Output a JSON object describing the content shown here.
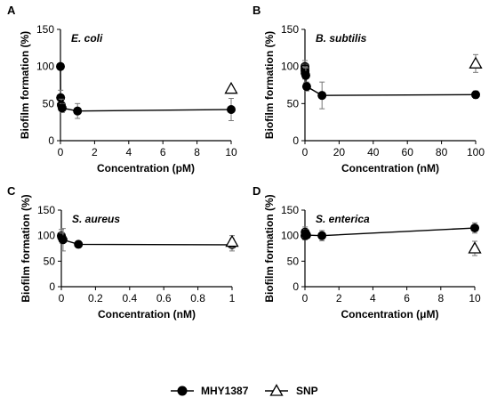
{
  "chart_data": [
    {
      "panel": "A",
      "type": "scatter",
      "title": "E. coli",
      "xlabel": "Concentration (pM)",
      "ylabel": "Biofilm formation (%)",
      "xlim": [
        0,
        10
      ],
      "ylim": [
        0,
        150
      ],
      "xticks": [
        "0",
        "2",
        "4",
        "6",
        "8",
        "10"
      ],
      "yticks": [
        "0",
        "50",
        "100",
        "150"
      ],
      "series": [
        {
          "name": "MHY1387",
          "marker": "circle",
          "connected": true,
          "x": [
            0,
            0.01,
            0.05,
            0.1,
            1,
            10
          ],
          "y": [
            100,
            58,
            48,
            44,
            40,
            42
          ],
          "err": [
            0,
            10,
            8,
            6,
            10,
            15
          ]
        },
        {
          "name": "SNP",
          "marker": "open-triangle",
          "connected": false,
          "x": [
            10
          ],
          "y": [
            70
          ],
          "err": [
            0
          ]
        }
      ]
    },
    {
      "panel": "B",
      "type": "scatter",
      "title": "B. subtilis",
      "xlabel": "Concentration (nM)",
      "ylabel": "Biofilm formation (%)",
      "xlim": [
        0,
        100
      ],
      "ylim": [
        0,
        150
      ],
      "xticks": [
        "0",
        "20",
        "40",
        "60",
        "80",
        "100"
      ],
      "yticks": [
        "0",
        "50",
        "100",
        "150"
      ],
      "series": [
        {
          "name": "MHY1387",
          "marker": "circle",
          "connected": true,
          "x": [
            0,
            0.01,
            0.05,
            0.1,
            0.5,
            1,
            10,
            100
          ],
          "y": [
            100,
            97,
            94,
            91,
            88,
            73,
            61,
            62
          ],
          "err": [
            8,
            6,
            6,
            8,
            10,
            6,
            18,
            5
          ]
        },
        {
          "name": "SNP",
          "marker": "open-triangle",
          "connected": false,
          "x": [
            100
          ],
          "y": [
            104
          ],
          "err": [
            12
          ]
        }
      ]
    },
    {
      "panel": "C",
      "type": "scatter",
      "title": "S. aureus",
      "xlabel": "Concentration (nM)",
      "ylabel": "Biofilm formation (%)",
      "xlim": [
        0,
        1
      ],
      "ylim": [
        0,
        150
      ],
      "xticks": [
        "0",
        "0.2",
        "0.4",
        "0.6",
        "0.8",
        "1"
      ],
      "yticks": [
        "0",
        "50",
        "100",
        "150"
      ],
      "series": [
        {
          "name": "MHY1387",
          "marker": "circle",
          "connected": true,
          "x": [
            0,
            0.001,
            0.005,
            0.01,
            0.1,
            1
          ],
          "y": [
            100,
            98,
            95,
            92,
            83,
            82
          ],
          "err": [
            12,
            8,
            10,
            22,
            3,
            12
          ]
        },
        {
          "name": "SNP",
          "marker": "open-triangle",
          "connected": false,
          "x": [
            1
          ],
          "y": [
            88
          ],
          "err": [
            12
          ]
        }
      ]
    },
    {
      "panel": "D",
      "type": "scatter",
      "title": "S. enterica",
      "xlabel": "Concentration (μM)",
      "ylabel": "Biofilm formation (%)",
      "xlim": [
        0,
        10
      ],
      "ylim": [
        0,
        150
      ],
      "xticks": [
        "0",
        "2",
        "4",
        "6",
        "8",
        "10"
      ],
      "yticks": [
        "0",
        "50",
        "100",
        "150"
      ],
      "series": [
        {
          "name": "MHY1387",
          "marker": "circle",
          "connected": true,
          "x": [
            0,
            0.01,
            0.05,
            0.1,
            1,
            10
          ],
          "y": [
            100,
            107,
            104,
            101,
            100,
            115
          ],
          "err": [
            8,
            10,
            8,
            6,
            10,
            10
          ]
        },
        {
          "name": "SNP",
          "marker": "open-triangle",
          "connected": false,
          "x": [
            10
          ],
          "y": [
            75
          ],
          "err": [
            14
          ]
        }
      ]
    }
  ],
  "legend": {
    "items": [
      {
        "label": "MHY1387",
        "marker": "filled-circle"
      },
      {
        "label": "SNP",
        "marker": "open-triangle"
      }
    ]
  }
}
